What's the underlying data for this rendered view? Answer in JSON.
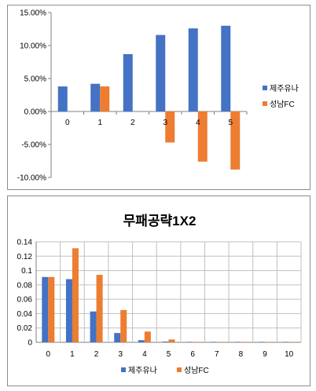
{
  "colors": {
    "blue": "#4472C4",
    "orange": "#ED7D31",
    "grid": "#C0C0C0",
    "axis": "#808080"
  },
  "chart_data": [
    {
      "type": "bar",
      "title": "",
      "categories": [
        "0",
        "1",
        "2",
        "3",
        "4",
        "5"
      ],
      "series": [
        {
          "name": "제주유나",
          "values": [
            3.8,
            4.2,
            8.7,
            11.6,
            12.6,
            13.0
          ]
        },
        {
          "name": "성남FC",
          "values": [
            null,
            3.8,
            null,
            -4.7,
            -7.6,
            -8.8
          ]
        }
      ],
      "ylim": [
        -10,
        15
      ],
      "yticks": [
        "15.00%",
        "10.00%",
        "5.00%",
        "0.00%",
        "-5.00%",
        "-10.00%"
      ],
      "grid": false,
      "legend": "right"
    },
    {
      "type": "bar",
      "title": "무패공략1X2",
      "categories": [
        "0",
        "1",
        "2",
        "3",
        "4",
        "5",
        "6",
        "7",
        "8",
        "9",
        "10"
      ],
      "series": [
        {
          "name": "제주유나",
          "values": [
            0.091,
            0.088,
            0.043,
            0.013,
            0.003,
            0.001,
            0.0005,
            0.0004,
            0.0003,
            0.0003,
            0.0002
          ]
        },
        {
          "name": "성남FC",
          "values": [
            0.091,
            0.131,
            0.094,
            0.045,
            0.015,
            0.004,
            0.0005,
            0.0004,
            0.0003,
            0.0003,
            0.0002
          ]
        }
      ],
      "ylim": [
        0,
        0.14
      ],
      "yticks": [
        "0.14",
        "0.12",
        "0.1",
        "0.08",
        "0.06",
        "0.04",
        "0.02",
        "0"
      ],
      "grid": true,
      "legend": "bottom"
    }
  ]
}
